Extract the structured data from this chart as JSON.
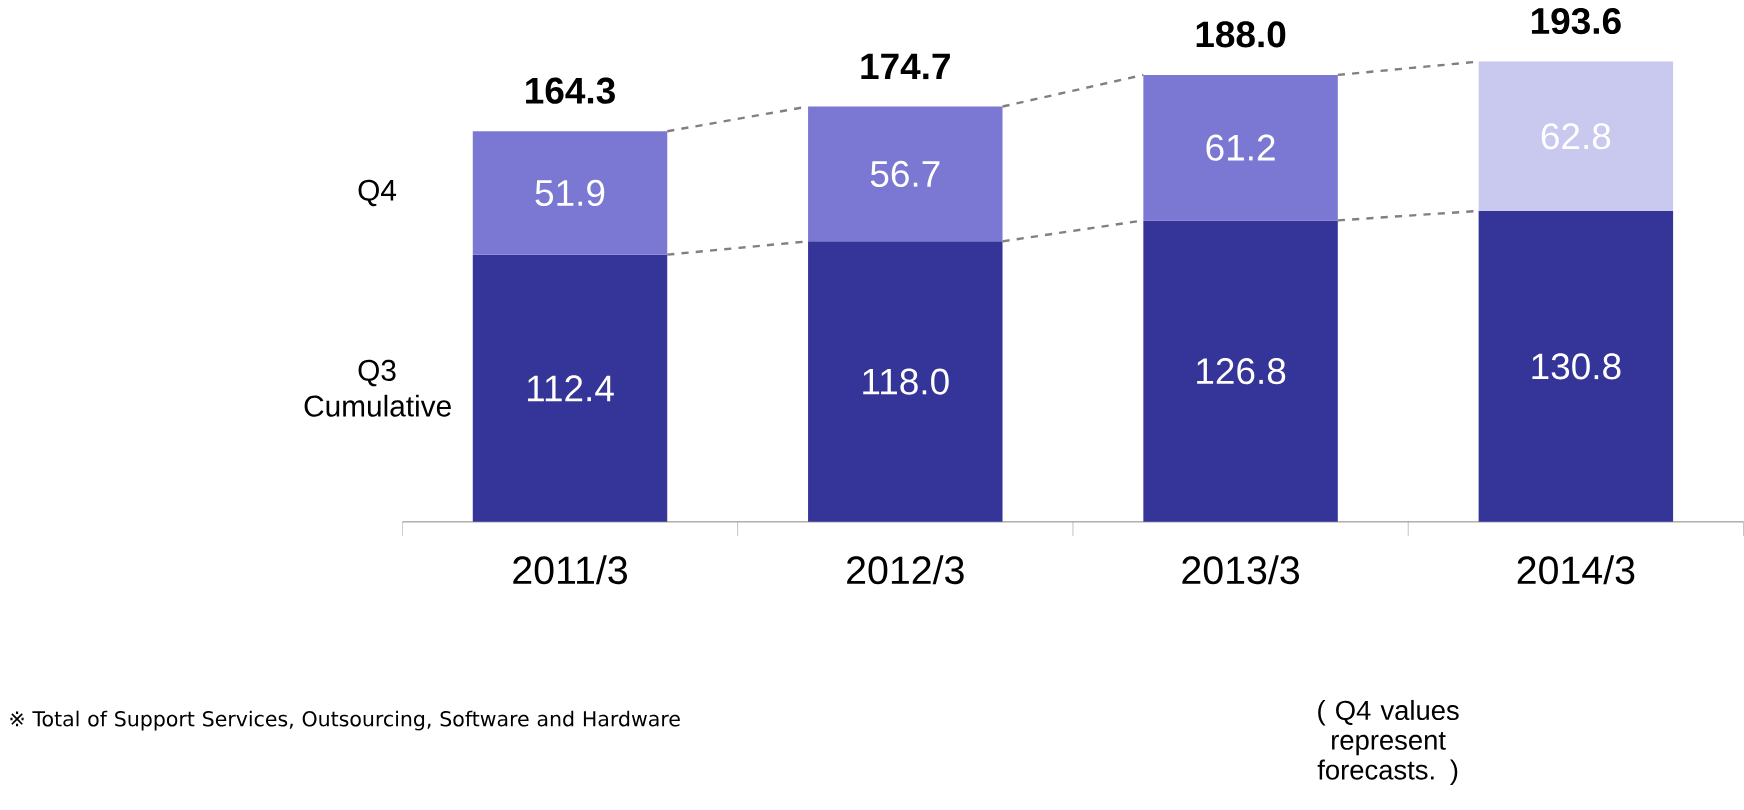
{
  "chart_data": {
    "type": "bar",
    "stacked": true,
    "categories": [
      "2011/3",
      "2012/3",
      "2013/3",
      "2014/3"
    ],
    "series": [
      {
        "name": "Q3 Cumulative",
        "color": "#343499",
        "values": [
          112.4,
          118.0,
          126.8,
          130.8
        ],
        "value_labels": [
          "112.4",
          "118.0",
          "126.8",
          "130.8"
        ]
      },
      {
        "name": "Q4",
        "colors": [
          "#7b78d4",
          "#7b78d4",
          "#7b78d4",
          "#c9c8ee"
        ],
        "values": [
          51.9,
          56.7,
          61.2,
          62.8
        ],
        "value_labels": [
          "51.9",
          "56.7",
          "61.2",
          "62.8"
        ]
      }
    ],
    "totals": [
      "164.3",
      "174.7",
      "188.0",
      "193.6"
    ],
    "annotations": [
      "※ Total of Support Services, Outsourcing, Software and Hardware",
      "( Q4 values represent forecasts. )"
    ]
  }
}
